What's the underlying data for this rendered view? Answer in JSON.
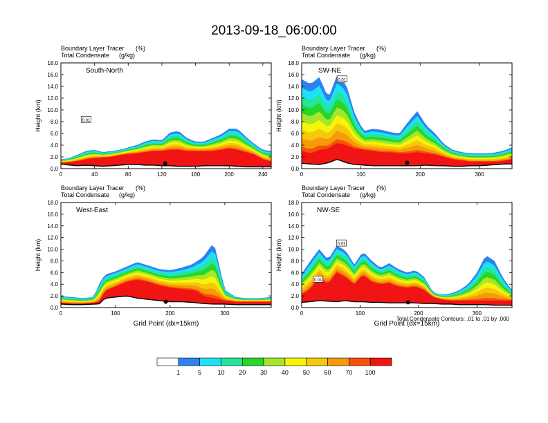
{
  "figure": {
    "title": "2013-09-18_06:00:00",
    "contour_note": "Total Condensate Contours: .01 to .01 by .000"
  },
  "colors": {
    "bins": [
      "#ffffff",
      "#2c83f0",
      "#1ee1f5",
      "#24e59a",
      "#27d627",
      "#a6e62a",
      "#f5f50a",
      "#f5c80a",
      "#f59b0a",
      "#f5520a",
      "#f01414"
    ],
    "contour": "#000000",
    "ground": "#000000"
  },
  "colorbar": {
    "labels": [
      "1",
      "5",
      "10",
      "20",
      "30",
      "40",
      "50",
      "60",
      "70",
      "100"
    ]
  },
  "chart_data": [
    {
      "type": "heatmap",
      "panel": "South-North",
      "label": "South-North",
      "var1": "Boundary Layer Tracer",
      "unit1": "(%)",
      "var2": "Total Condensate",
      "unit2": "(g/kg)",
      "ylabel": "Height (km)",
      "xlabel": "",
      "xlim": [
        0,
        250
      ],
      "ylim": [
        0,
        18
      ],
      "xticks": [
        "0",
        "40",
        "80",
        "120",
        "160",
        "200",
        "240"
      ],
      "yticks": [
        "0.0",
        "2.0",
        "4.0",
        "6.0",
        "8.0",
        "10.0",
        "12.0",
        "14.0",
        "16.0",
        "18.0"
      ],
      "contour_labels": [
        {
          "text": "0.01",
          "x": 30,
          "y": 8.3
        }
      ],
      "marker": {
        "x": 124,
        "y": 0.9
      },
      "profile": {
        "x": [
          0,
          10,
          20,
          30,
          40,
          50,
          60,
          70,
          80,
          90,
          100,
          110,
          120,
          130,
          140,
          150,
          160,
          170,
          180,
          190,
          200,
          210,
          220,
          230,
          240,
          250
        ],
        "ground": [
          0.8,
          0.6,
          0.5,
          0.6,
          0.5,
          0.4,
          0.5,
          0.6,
          0.7,
          0.7,
          0.6,
          0.6,
          0.5,
          0.5,
          0.4,
          0.4,
          0.4,
          0.5,
          0.5,
          0.5,
          0.5,
          0.4,
          0.3,
          0.3,
          0.3,
          0.3
        ],
        "top": [
          1.6,
          1.8,
          2.4,
          3.0,
          3.2,
          2.8,
          3.0,
          3.2,
          3.6,
          4.0,
          4.6,
          5.0,
          4.8,
          6.2,
          6.4,
          5.2,
          4.6,
          4.6,
          5.2,
          5.8,
          6.8,
          6.8,
          5.4,
          4.2,
          3.2,
          3.0
        ],
        "red": [
          1.0,
          1.1,
          1.3,
          1.6,
          1.8,
          1.9,
          2.0,
          2.3,
          2.5,
          2.6,
          2.8,
          3.0,
          3.0,
          3.2,
          3.2,
          3.0,
          3.0,
          3.0,
          3.0,
          3.2,
          3.4,
          3.2,
          2.8,
          2.4,
          1.6,
          1.2
        ]
      }
    },
    {
      "type": "heatmap",
      "panel": "SW-NE",
      "label": "SW-NE",
      "var1": "Boundary Layer Tracer",
      "unit1": "(%)",
      "var2": "Total Condensate",
      "unit2": "(g/kg)",
      "ylabel": "Height (km)",
      "xlabel": "",
      "xlim": [
        0,
        355
      ],
      "ylim": [
        0,
        18
      ],
      "xticks": [
        "0",
        "100",
        "200",
        "300"
      ],
      "yticks": [
        "0.0",
        "2.0",
        "4.0",
        "6.0",
        "8.0",
        "10.0",
        "12.0",
        "14.0",
        "16.0",
        "18.0"
      ],
      "contour_labels": [
        {
          "text": "0.01",
          "x": 68,
          "y": 15.2
        }
      ],
      "marker": {
        "x": 178,
        "y": 1.0
      },
      "profile": {
        "x": [
          0,
          15,
          30,
          45,
          60,
          75,
          90,
          105,
          120,
          135,
          150,
          165,
          180,
          195,
          210,
          225,
          240,
          255,
          270,
          285,
          300,
          315,
          330,
          345,
          355
        ],
        "ground": [
          0.9,
          0.8,
          0.7,
          1.0,
          1.6,
          1.0,
          0.7,
          0.6,
          0.5,
          0.5,
          0.5,
          0.5,
          0.5,
          0.5,
          0.6,
          0.5,
          0.5,
          0.4,
          0.4,
          0.5,
          0.5,
          0.6,
          0.7,
          0.8,
          0.8
        ],
        "top": [
          15.2,
          14.4,
          15.6,
          12.0,
          16.0,
          14.4,
          9.2,
          6.4,
          6.8,
          6.6,
          6.2,
          6.0,
          8.0,
          9.8,
          7.4,
          6.0,
          4.2,
          3.2,
          2.8,
          2.6,
          2.6,
          2.6,
          2.8,
          3.2,
          3.6
        ],
        "red": [
          3.0,
          2.6,
          3.2,
          3.4,
          4.4,
          4.0,
          3.4,
          3.2,
          3.0,
          2.8,
          2.8,
          2.6,
          2.6,
          2.8,
          2.6,
          2.4,
          2.0,
          1.6,
          1.4,
          1.2,
          1.2,
          1.2,
          1.2,
          1.4,
          1.6
        ]
      }
    },
    {
      "type": "heatmap",
      "panel": "West-East",
      "label": "West-East",
      "var1": "Boundary Layer Tracer",
      "unit1": "(%)",
      "var2": "Total Condensate",
      "unit2": "(g/kg)",
      "ylabel": "Height (km)",
      "xlabel": "Grid Point (dx=15km)",
      "xlim": [
        0,
        385
      ],
      "ylim": [
        0,
        18
      ],
      "xticks": [
        "0",
        "100",
        "200",
        "300"
      ],
      "yticks": [
        "0.0",
        "2.0",
        "4.0",
        "6.0",
        "8.0",
        "10.0",
        "12.0",
        "14.0",
        "16.0",
        "18.0"
      ],
      "contour_labels": [],
      "marker": {
        "x": 192,
        "y": 1.0
      },
      "profile": {
        "x": [
          0,
          20,
          40,
          60,
          70,
          80,
          100,
          120,
          140,
          160,
          180,
          200,
          220,
          240,
          250,
          260,
          280,
          300,
          320,
          340,
          360,
          385
        ],
        "ground": [
          0.6,
          0.5,
          0.5,
          0.6,
          0.6,
          1.6,
          1.8,
          2.0,
          1.6,
          1.4,
          1.2,
          1.0,
          1.0,
          0.9,
          0.8,
          0.7,
          0.6,
          0.6,
          0.5,
          0.5,
          0.5,
          0.5
        ],
        "top": [
          2.0,
          1.8,
          1.6,
          1.8,
          4.0,
          5.6,
          6.2,
          7.0,
          7.8,
          7.2,
          6.6,
          6.4,
          6.8,
          7.4,
          8.0,
          8.6,
          11.2,
          3.0,
          1.8,
          1.6,
          1.6,
          1.8
        ],
        "red": [
          0.8,
          0.7,
          0.7,
          0.8,
          1.0,
          2.8,
          3.6,
          4.4,
          4.8,
          4.4,
          3.8,
          3.4,
          3.2,
          3.0,
          2.8,
          2.0,
          1.6,
          1.2,
          1.0,
          1.0,
          1.0,
          1.0
        ]
      }
    },
    {
      "type": "heatmap",
      "panel": "NW-SE",
      "label": "NW-SE",
      "var1": "Boundary Layer Tracer",
      "unit1": "(%)",
      "var2": "Total Condensate",
      "unit2": "(g/kg)",
      "ylabel": "Height (km)",
      "xlabel": "Grid Point (dx=15km)",
      "xlim": [
        0,
        360
      ],
      "ylim": [
        0,
        18
      ],
      "xticks": [
        "0",
        "100",
        "200",
        "300"
      ],
      "yticks": [
        "0.0",
        "2.0",
        "4.0",
        "6.0",
        "8.0",
        "10.0",
        "12.0",
        "14.0",
        "16.0",
        "18.0"
      ],
      "contour_labels": [
        {
          "text": "0.01",
          "x": 68,
          "y": 11.0
        },
        {
          "text": "0.01",
          "x": 28,
          "y": 4.8
        }
      ],
      "marker": {
        "x": 182,
        "y": 0.9
      },
      "profile": {
        "x": [
          0,
          15,
          30,
          45,
          60,
          75,
          90,
          105,
          120,
          135,
          150,
          165,
          180,
          195,
          210,
          225,
          240,
          255,
          270,
          285,
          300,
          315,
          330,
          345,
          360
        ],
        "ground": [
          0.9,
          1.0,
          1.2,
          1.1,
          1.0,
          1.2,
          1.0,
          1.0,
          0.9,
          0.9,
          0.8,
          0.8,
          0.8,
          0.8,
          0.7,
          0.7,
          0.6,
          0.6,
          0.5,
          0.5,
          0.5,
          0.5,
          0.4,
          0.4,
          0.4
        ],
        "top": [
          5.8,
          8.0,
          10.0,
          8.2,
          10.6,
          9.8,
          7.4,
          9.6,
          8.0,
          6.8,
          7.6,
          6.6,
          6.0,
          6.4,
          5.2,
          2.6,
          2.2,
          2.4,
          3.0,
          4.0,
          6.0,
          9.0,
          8.0,
          5.0,
          3.0
        ],
        "red": [
          2.2,
          3.2,
          5.2,
          4.0,
          6.0,
          5.2,
          4.0,
          5.6,
          4.4,
          4.0,
          4.2,
          3.6,
          3.4,
          3.6,
          3.0,
          1.8,
          1.4,
          1.2,
          1.2,
          1.2,
          1.2,
          1.2,
          1.2,
          1.2,
          1.2
        ]
      }
    }
  ]
}
